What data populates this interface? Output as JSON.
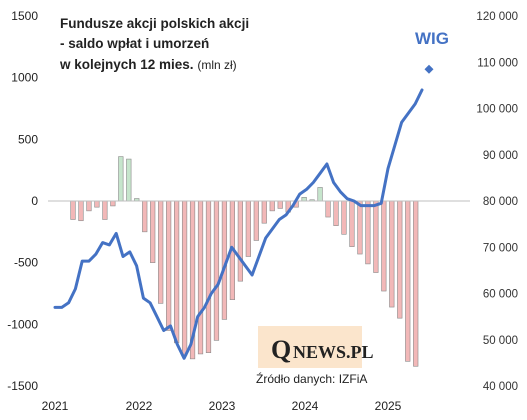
{
  "chart_data": {
    "type": "bar+line",
    "title_lines": [
      "Fundusze akcji polskich akcji",
      "- saldo wpłat i umorzeń",
      "w kolejnych 12 mies."
    ],
    "title_unit": "(mln zł)",
    "x_tick_labels": [
      "2021",
      "2022",
      "2023",
      "2024",
      "2025"
    ],
    "y_left": {
      "ticks": [
        "1500",
        "1000",
        "500",
        "0",
        "-500",
        "-1000",
        "-1500"
      ],
      "range": [
        -1500,
        1500
      ]
    },
    "y_right": {
      "ticks": [
        "120 000",
        "110 000",
        "100 000",
        "90 000",
        "80 000",
        "70 000",
        "60 000",
        "50 000",
        "40 000"
      ],
      "range": [
        40000,
        120000
      ]
    },
    "bars": {
      "values": [
        -150,
        -160,
        -80,
        -50,
        -150,
        -40,
        360,
        340,
        20,
        -250,
        -500,
        -830,
        -1050,
        -1150,
        -1250,
        -1280,
        -1240,
        -1230,
        -1130,
        -960,
        -800,
        -650,
        -450,
        -320,
        -180,
        -80,
        -60,
        -90,
        -50,
        30,
        10,
        110,
        -130,
        -200,
        -270,
        -370,
        -430,
        -510,
        -580,
        -730,
        -860,
        -950,
        -1300,
        -1340
      ],
      "positive_color": "#c6e5cc",
      "negative_color": "#f2b8b8",
      "border_color": "#8a8a8a"
    },
    "wig": {
      "name": "WIG",
      "color": "#4472c4",
      "values": [
        57000,
        57000,
        58000,
        61000,
        67000,
        67000,
        68500,
        71000,
        70500,
        73000,
        68000,
        69000,
        66000,
        59000,
        58000,
        55000,
        52000,
        53000,
        49000,
        46000,
        49000,
        55000,
        57000,
        60000,
        62000,
        66000,
        70000,
        68000,
        66000,
        64000,
        68000,
        72000,
        74000,
        76000,
        77000,
        79000,
        81500,
        82500,
        84000,
        86000,
        88000,
        84000,
        82000,
        80500,
        80000,
        79000,
        79000,
        79000,
        79500,
        87000,
        92000,
        97000,
        99000,
        101000,
        104000
      ],
      "last_marker": 108500
    },
    "source_label": "Źródło danych: IZFiA",
    "logo": {
      "initial": "Q",
      "rest": "NEWS.PL",
      "bg_color": "#fbe5cc"
    }
  }
}
